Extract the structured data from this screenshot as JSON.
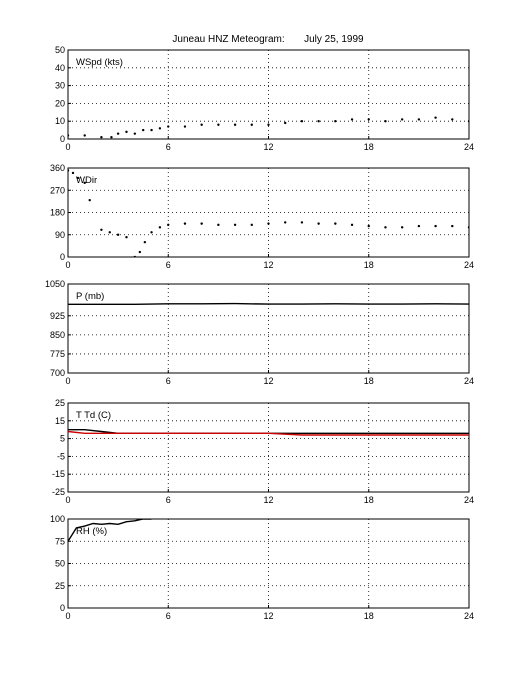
{
  "figure": {
    "title": "Juneau HNZ Meteogram:       July 25, 1999"
  },
  "chart_data": [
    {
      "type": "scatter",
      "label": "WSpd (kts)",
      "xlim": [
        0,
        24
      ],
      "ylim": [
        0,
        50
      ],
      "xticks": [
        0,
        6,
        12,
        18,
        24
      ],
      "yticks": [
        0,
        10,
        20,
        30,
        40,
        50
      ],
      "grid": true,
      "series": [
        {
          "color": "#000000",
          "x": [
            0,
            1,
            2,
            2.6,
            3,
            3.5,
            4,
            4.5,
            5,
            5.5,
            6,
            7,
            8,
            9,
            10,
            11,
            12,
            13,
            14,
            15,
            16,
            17,
            18,
            19,
            20,
            21,
            22,
            23,
            24
          ],
          "y": [
            2,
            2,
            1,
            1,
            3,
            4,
            3,
            5,
            5,
            6,
            7,
            7,
            8,
            8,
            8,
            8,
            8,
            9,
            10,
            10,
            10,
            11,
            11,
            10,
            11,
            11,
            12,
            11,
            10
          ]
        }
      ]
    },
    {
      "type": "scatter",
      "label": "WDir",
      "xlim": [
        0,
        24
      ],
      "ylim": [
        0,
        360
      ],
      "xticks": [
        0,
        6,
        12,
        18,
        24
      ],
      "yticks": [
        0,
        90,
        180,
        270,
        360
      ],
      "grid": true,
      "series": [
        {
          "color": "#000000",
          "x": [
            0,
            0.3,
            0.6,
            1,
            1.3,
            2,
            2.5,
            3,
            3.5,
            4,
            4.3,
            4.6,
            5,
            5.5,
            6,
            7,
            8,
            9,
            10,
            11,
            12,
            13,
            14,
            15,
            16,
            17,
            18,
            19,
            20,
            21,
            22,
            23,
            24
          ],
          "y": [
            350,
            340,
            320,
            300,
            230,
            110,
            100,
            90,
            80,
            0,
            20,
            60,
            100,
            120,
            130,
            135,
            135,
            130,
            130,
            130,
            135,
            140,
            140,
            135,
            135,
            130,
            125,
            120,
            120,
            125,
            125,
            125,
            120
          ]
        }
      ]
    },
    {
      "type": "line",
      "label": "P (mb)",
      "xlim": [
        0,
        24
      ],
      "ylim": [
        700,
        1050
      ],
      "xticks": [
        0,
        6,
        12,
        18,
        24
      ],
      "yticks": [
        700,
        775,
        850,
        925,
        1050
      ],
      "ytick_labels": [
        "700",
        "775",
        "850",
        "925",
        "1050"
      ],
      "grid": true,
      "series": [
        {
          "color": "#000000",
          "x": [
            0,
            2,
            4,
            6,
            8,
            10,
            12,
            14,
            16,
            18,
            20,
            22,
            24
          ],
          "y": [
            970,
            970,
            970,
            972,
            972,
            973,
            971,
            971,
            972,
            971,
            971,
            972,
            971
          ]
        }
      ]
    },
    {
      "type": "line",
      "label": "T Td (C)",
      "xlim": [
        0,
        24
      ],
      "ylim": [
        -25,
        25
      ],
      "xticks": [
        0,
        6,
        12,
        18,
        24
      ],
      "yticks": [
        -25,
        -15,
        -5,
        5,
        15,
        25
      ],
      "grid": true,
      "series": [
        {
          "color": "#000000",
          "x": [
            0,
            1,
            2,
            3,
            4,
            5,
            6,
            8,
            10,
            12,
            14,
            16,
            18,
            20,
            22,
            24
          ],
          "y": [
            10,
            10,
            9,
            8,
            8,
            8,
            8,
            8,
            8,
            8,
            8,
            8,
            8,
            8,
            8,
            8
          ]
        },
        {
          "color": "#cc0000",
          "x": [
            0,
            1,
            2,
            3,
            4,
            5,
            6,
            8,
            10,
            12,
            14,
            16,
            18,
            20,
            22,
            24
          ],
          "y": [
            9,
            8,
            8,
            8,
            8,
            8,
            8,
            8,
            8,
            8,
            7,
            7,
            7,
            7,
            7,
            7
          ]
        }
      ]
    },
    {
      "type": "line",
      "label": "RH (%)",
      "xlim": [
        0,
        24
      ],
      "ylim": [
        0,
        100
      ],
      "xticks": [
        0,
        6,
        12,
        18,
        24
      ],
      "yticks": [
        0,
        25,
        50,
        75,
        100
      ],
      "grid": true,
      "series": [
        {
          "color": "#000000",
          "x": [
            0,
            0.5,
            1,
            1.5,
            2,
            2.5,
            3,
            3.5,
            4,
            4.5,
            5
          ],
          "y": [
            75,
            90,
            92,
            95,
            94,
            95,
            94,
            97,
            98,
            100,
            100
          ]
        }
      ]
    }
  ]
}
